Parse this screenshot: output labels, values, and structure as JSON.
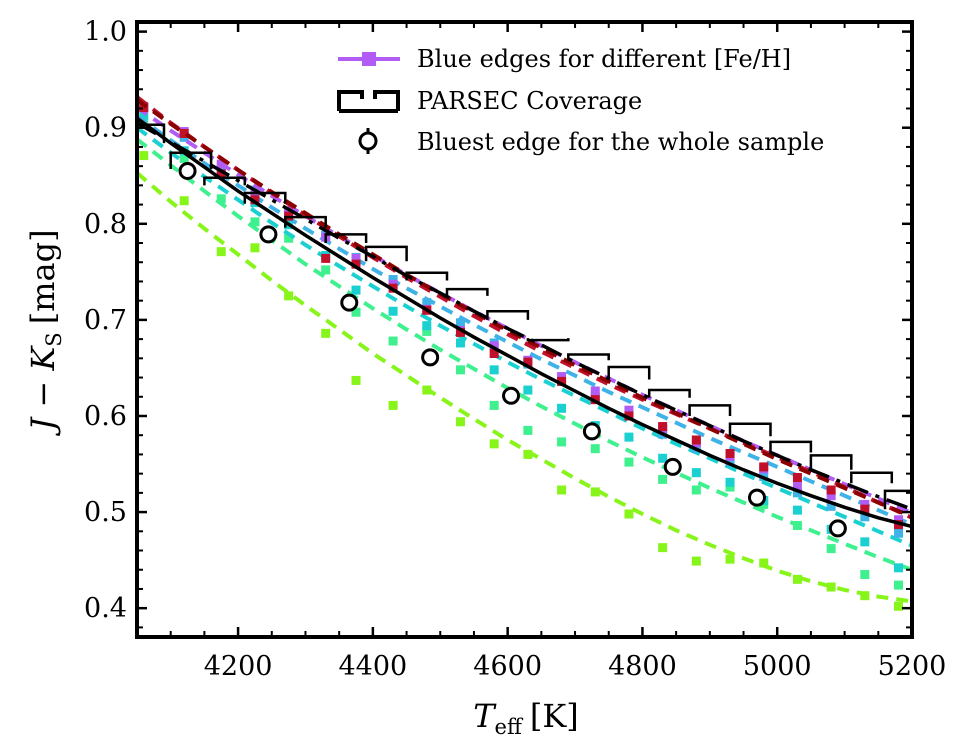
{
  "chart_data": {
    "type": "line",
    "title": "",
    "xlabel": "T_eff [K]",
    "xlabel_main": "T",
    "xlabel_sub": "eff",
    "xlabel_unit": "[K]",
    "ylabel": "J − K_S [mag]",
    "ylabel_main": "J − K",
    "ylabel_sub": "S",
    "ylabel_unit": "[mag]",
    "xlim": [
      4050,
      5200
    ],
    "ylim": [
      0.37,
      1.01
    ],
    "xticks": [
      4200,
      4400,
      4600,
      4800,
      5000,
      5200
    ],
    "yticks": [
      0.4,
      0.5,
      0.6,
      0.7,
      0.8,
      0.9,
      1.0
    ],
    "xtick_labels": [
      "4200",
      "4400",
      "4600",
      "4800",
      "5000",
      "5200"
    ],
    "ytick_labels": [
      "0.4",
      "0.5",
      "0.6",
      "0.7",
      "0.8",
      "0.9",
      "1.0"
    ],
    "legend": {
      "position": "top-right",
      "entries": [
        "Blue edges for different [Fe/H]",
        "PARSEC Coverage",
        "Bluest edge for the whole sample"
      ]
    },
    "fit_x": [
      4050,
      4100,
      4150,
      4200,
      4250,
      4300,
      4350,
      4400,
      4450,
      4500,
      4550,
      4600,
      4650,
      4700,
      4750,
      4800,
      4850,
      4900,
      4950,
      5000,
      5050,
      5100,
      5150,
      5200
    ],
    "series": [
      {
        "name": "[Fe/H] curve 1 (lime)",
        "color": "#88f51a",
        "curve": [
          0.853,
          0.823,
          0.795,
          0.768,
          0.741,
          0.715,
          0.69,
          0.665,
          0.642,
          0.619,
          0.597,
          0.575,
          0.555,
          0.535,
          0.516,
          0.498,
          0.481,
          0.466,
          0.452,
          0.439,
          0.428,
          0.419,
          0.412,
          0.407
        ],
        "points": [
          [
            4060,
            0.871
          ],
          [
            4120,
            0.824
          ],
          [
            4175,
            0.771
          ],
          [
            4225,
            0.775
          ],
          [
            4275,
            0.725
          ],
          [
            4330,
            0.686
          ],
          [
            4375,
            0.637
          ],
          [
            4430,
            0.611
          ],
          [
            4480,
            0.627
          ],
          [
            4530,
            0.594
          ],
          [
            4580,
            0.571
          ],
          [
            4630,
            0.56
          ],
          [
            4680,
            0.523
          ],
          [
            4730,
            0.521
          ],
          [
            4780,
            0.498
          ],
          [
            4830,
            0.463
          ],
          [
            4880,
            0.449
          ],
          [
            4930,
            0.451
          ],
          [
            4980,
            0.447
          ],
          [
            5030,
            0.43
          ],
          [
            5080,
            0.422
          ],
          [
            5130,
            0.413
          ],
          [
            5180,
            0.402
          ]
        ]
      },
      {
        "name": "[Fe/H] curve 2 (green)",
        "color": "#3ef08e",
        "curve": [
          0.888,
          0.861,
          0.834,
          0.808,
          0.783,
          0.758,
          0.735,
          0.712,
          0.69,
          0.669,
          0.649,
          0.629,
          0.61,
          0.592,
          0.574,
          0.557,
          0.541,
          0.525,
          0.51,
          0.495,
          0.481,
          0.467,
          0.453,
          0.44
        ],
        "points": [
          [
            4060,
            0.905
          ],
          [
            4120,
            0.868
          ],
          [
            4175,
            0.826
          ],
          [
            4225,
            0.802
          ],
          [
            4275,
            0.785
          ],
          [
            4330,
            0.752
          ],
          [
            4375,
            0.708
          ],
          [
            4430,
            0.678
          ],
          [
            4480,
            0.688
          ],
          [
            4530,
            0.648
          ],
          [
            4580,
            0.611
          ],
          [
            4630,
            0.585
          ],
          [
            4680,
            0.573
          ],
          [
            4730,
            0.566
          ],
          [
            4780,
            0.552
          ],
          [
            4830,
            0.534
          ],
          [
            4880,
            0.523
          ],
          [
            4930,
            0.526
          ],
          [
            4980,
            0.508
          ],
          [
            5030,
            0.486
          ],
          [
            5080,
            0.462
          ],
          [
            5130,
            0.435
          ],
          [
            5180,
            0.424
          ]
        ]
      },
      {
        "name": "[Fe/H] curve 3 (cyan)",
        "color": "#1ad0d0",
        "curve": [
          0.9,
          0.874,
          0.849,
          0.825,
          0.801,
          0.778,
          0.756,
          0.735,
          0.714,
          0.694,
          0.675,
          0.656,
          0.638,
          0.621,
          0.604,
          0.587,
          0.571,
          0.556,
          0.54,
          0.525,
          0.51,
          0.495,
          0.48,
          0.465
        ],
        "points": [
          [
            4060,
            0.913
          ],
          [
            4120,
            0.876
          ],
          [
            4175,
            0.851
          ],
          [
            4225,
            0.822
          ],
          [
            4275,
            0.799
          ],
          [
            4330,
            0.767
          ],
          [
            4375,
            0.731
          ],
          [
            4430,
            0.709
          ],
          [
            4480,
            0.694
          ],
          [
            4530,
            0.676
          ],
          [
            4580,
            0.648
          ],
          [
            4630,
            0.627
          ],
          [
            4680,
            0.608
          ],
          [
            4730,
            0.59
          ],
          [
            4780,
            0.578
          ],
          [
            4830,
            0.556
          ],
          [
            4880,
            0.541
          ],
          [
            4930,
            0.531
          ],
          [
            4980,
            0.512
          ],
          [
            5030,
            0.502
          ],
          [
            5080,
            0.482
          ],
          [
            5130,
            0.469
          ],
          [
            5180,
            0.442
          ]
        ]
      },
      {
        "name": "[Fe/H] curve 4 (sky blue)",
        "color": "#3fb3e8",
        "curve": [
          0.912,
          0.887,
          0.863,
          0.84,
          0.817,
          0.795,
          0.774,
          0.753,
          0.733,
          0.714,
          0.695,
          0.677,
          0.659,
          0.642,
          0.625,
          0.609,
          0.593,
          0.577,
          0.562,
          0.547,
          0.532,
          0.517,
          0.502,
          0.487
        ],
        "points": [
          [
            4060,
            0.921
          ],
          [
            4120,
            0.89
          ],
          [
            4175,
            0.858
          ],
          [
            4225,
            0.835
          ],
          [
            4275,
            0.812
          ],
          [
            4330,
            0.788
          ],
          [
            4375,
            0.765
          ],
          [
            4430,
            0.742
          ],
          [
            4480,
            0.718
          ],
          [
            4530,
            0.697
          ],
          [
            4580,
            0.676
          ],
          [
            4630,
            0.654
          ],
          [
            4680,
            0.636
          ],
          [
            4730,
            0.62
          ],
          [
            4780,
            0.602
          ],
          [
            4830,
            0.581
          ],
          [
            4880,
            0.566
          ],
          [
            4930,
            0.552
          ],
          [
            4980,
            0.537
          ],
          [
            5030,
            0.52
          ],
          [
            5080,
            0.506
          ],
          [
            5130,
            0.495
          ],
          [
            5180,
            0.478
          ]
        ]
      },
      {
        "name": "[Fe/H] curve 5 (violet)",
        "color": "#b15cf5",
        "curve": [
          0.921,
          0.897,
          0.874,
          0.851,
          0.829,
          0.808,
          0.787,
          0.767,
          0.747,
          0.728,
          0.709,
          0.691,
          0.673,
          0.656,
          0.639,
          0.622,
          0.606,
          0.59,
          0.574,
          0.559,
          0.544,
          0.529,
          0.514,
          0.499
        ],
        "points": [
          [
            4060,
            0.922
          ],
          [
            4120,
            0.896
          ],
          [
            4175,
            0.862
          ],
          [
            4225,
            0.83
          ],
          [
            4275,
            0.811
          ],
          [
            4330,
            0.786
          ],
          [
            4375,
            0.764
          ],
          [
            4430,
            0.737
          ],
          [
            4480,
            0.711
          ],
          [
            4530,
            0.689
          ],
          [
            4580,
            0.673
          ],
          [
            4630,
            0.658
          ],
          [
            4680,
            0.641
          ],
          [
            4730,
            0.626
          ],
          [
            4780,
            0.606
          ],
          [
            4830,
            0.587
          ],
          [
            4880,
            0.572
          ],
          [
            4930,
            0.558
          ],
          [
            4980,
            0.545
          ],
          [
            5030,
            0.527
          ],
          [
            5080,
            0.517
          ],
          [
            5130,
            0.508
          ],
          [
            5180,
            0.492
          ]
        ]
      },
      {
        "name": "[Fe/H] curve 6 (red)",
        "color": "#c1102a",
        "curve": [
          0.932,
          0.905,
          0.88,
          0.856,
          0.832,
          0.809,
          0.787,
          0.765,
          0.744,
          0.724,
          0.704,
          0.685,
          0.667,
          0.65,
          0.633,
          0.617,
          0.602,
          0.587,
          0.572,
          0.557,
          0.542,
          0.526,
          0.51,
          0.494
        ],
        "points": [
          [
            4060,
            0.921
          ],
          [
            4120,
            0.894
          ],
          [
            4175,
            0.852
          ],
          [
            4225,
            0.825
          ],
          [
            4275,
            0.808
          ],
          [
            4330,
            0.764
          ],
          [
            4375,
            0.758
          ],
          [
            4430,
            0.733
          ],
          [
            4480,
            0.71
          ],
          [
            4530,
            0.687
          ],
          [
            4580,
            0.665
          ],
          [
            4630,
            0.656
          ],
          [
            4680,
            0.636
          ],
          [
            4730,
            0.617
          ],
          [
            4780,
            0.6
          ],
          [
            4830,
            0.589
          ],
          [
            4880,
            0.575
          ],
          [
            4930,
            0.561
          ],
          [
            4980,
            0.547
          ],
          [
            5030,
            0.536
          ],
          [
            5080,
            0.523
          ],
          [
            5130,
            0.503
          ],
          [
            5180,
            0.487
          ]
        ]
      },
      {
        "name": "[Fe/H] curve 7 (dark red)",
        "color": "#8b0000",
        "curve": [
          0.929,
          0.904,
          0.88,
          0.856,
          0.833,
          0.811,
          0.789,
          0.768,
          0.747,
          0.727,
          0.708,
          0.689,
          0.671,
          0.653,
          0.636,
          0.619,
          0.603,
          0.587,
          0.571,
          0.555,
          0.54,
          0.525,
          0.51,
          0.495
        ],
        "points": []
      }
    ],
    "parsec_coverage": {
      "name": "PARSEC Coverage",
      "top_curve": [
        0.91,
        0.884,
        0.859,
        0.834,
        0.811,
        0.788,
        0.766,
        0.744,
        0.723,
        0.702,
        0.682,
        0.663,
        0.644,
        0.626,
        0.608,
        0.591,
        0.575,
        0.559,
        0.544,
        0.53,
        0.517,
        0.505,
        0.494,
        0.485
      ],
      "dashdot_curve": [
        0.905,
        0.885,
        0.865,
        0.845,
        0.825,
        0.805,
        0.785,
        0.766,
        0.746,
        0.728,
        0.709,
        0.691,
        0.674,
        0.656,
        0.639,
        0.622,
        0.606,
        0.59,
        0.574,
        0.559,
        0.544,
        0.53,
        0.516,
        0.503
      ],
      "top_step_centers": [
        4060,
        4130,
        4180,
        4240,
        4300,
        4360,
        4420,
        4480,
        4540,
        4600,
        4660,
        4720,
        4780,
        4840,
        4900,
        4960,
        5020,
        5080,
        5140,
        5190
      ],
      "top_step_values": [
        0.903,
        0.874,
        0.848,
        0.832,
        0.807,
        0.789,
        0.776,
        0.749,
        0.732,
        0.709,
        0.679,
        0.664,
        0.651,
        0.627,
        0.611,
        0.592,
        0.573,
        0.559,
        0.541,
        0.522
      ],
      "bottom_step_values": [
        0.884,
        0.857,
        0.84,
        0.821,
        0.796,
        0.78,
        0.761,
        0.741,
        0.725,
        0.7,
        0.681,
        0.658,
        0.638,
        0.619,
        0.6,
        0.579,
        0.562,
        0.544,
        0.53,
        0.503
      ],
      "step_half_width": 30
    },
    "bluest_edge": {
      "name": "Bluest edge for the whole sample",
      "x": [
        4125,
        4245,
        4365,
        4485,
        4605,
        4725,
        4845,
        4970,
        5090
      ],
      "y": [
        0.855,
        0.789,
        0.718,
        0.661,
        0.621,
        0.584,
        0.547,
        0.515,
        0.483
      ]
    }
  }
}
